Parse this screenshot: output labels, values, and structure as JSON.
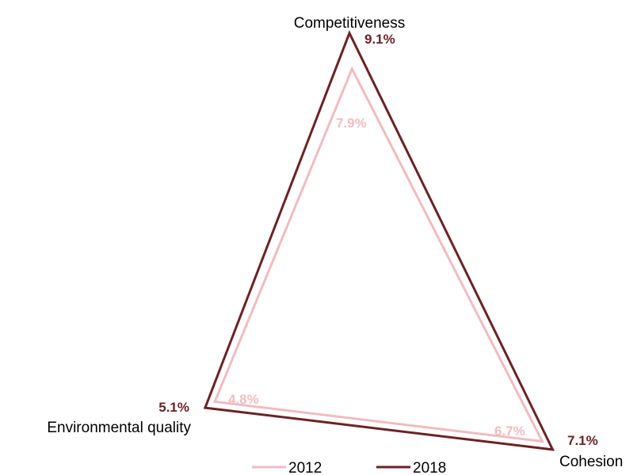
{
  "chart_data": {
    "type": "radar",
    "axes": [
      "Competitiveness",
      "Cohesion",
      "Environmental quality"
    ],
    "series": [
      {
        "name": "2012",
        "color": "#f0bcc0",
        "values": [
          7.9,
          6.7,
          4.8
        ],
        "labels": [
          "7.9%",
          "6.7%",
          "4.8%"
        ]
      },
      {
        "name": "2018",
        "color": "#6b2226",
        "values": [
          9.1,
          7.1,
          5.1
        ],
        "labels": [
          "9.1%",
          "7.1%",
          "5.1%"
        ]
      }
    ],
    "legend_position": "bottom",
    "grid": false
  }
}
